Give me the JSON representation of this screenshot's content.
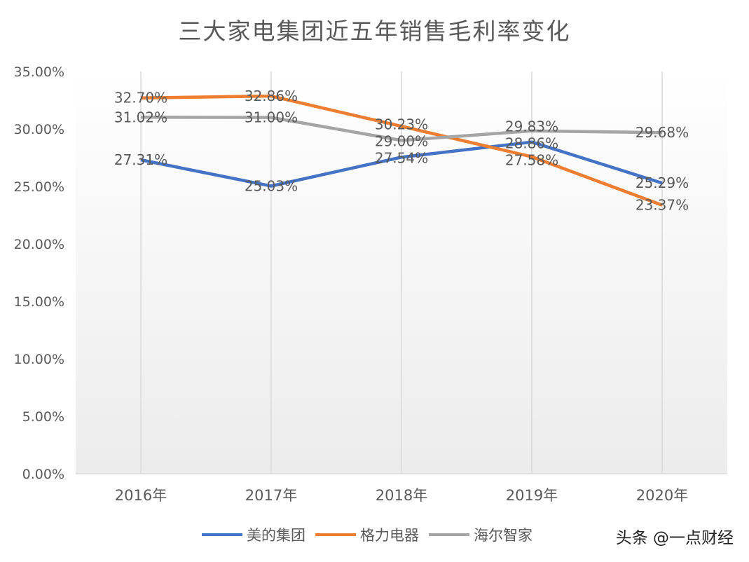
{
  "chart_data": {
    "type": "line",
    "title": "三大家电集团近五年销售毛利率变化",
    "categories": [
      "2016年",
      "2017年",
      "2018年",
      "2019年",
      "2020年"
    ],
    "ylim": [
      0,
      35
    ],
    "yticks": [
      "0.00%",
      "5.00%",
      "10.00%",
      "15.00%",
      "20.00%",
      "25.00%",
      "30.00%",
      "35.00%"
    ],
    "grid": "vertical",
    "legend_position": "bottom",
    "series": [
      {
        "name": "美的集团",
        "color": "#4472C4",
        "values": [
          27.31,
          25.03,
          27.54,
          28.86,
          25.29
        ],
        "labels": [
          "27.31%",
          "25.03%",
          "27.54%",
          "28.86%",
          "25.29%"
        ]
      },
      {
        "name": "格力电器",
        "color": "#ED7D31",
        "values": [
          32.7,
          32.86,
          30.23,
          27.58,
          23.37
        ],
        "labels": [
          "32.70%",
          "32.86%",
          "30.23%",
          "27.58%",
          "23.37%"
        ]
      },
      {
        "name": "海尔智家",
        "color": "#A5A5A5",
        "values": [
          31.02,
          31.0,
          29.0,
          29.83,
          29.68
        ],
        "labels": [
          "31.02%",
          "31.00%",
          "29.00%",
          "29.83%",
          "29.68%"
        ]
      }
    ]
  },
  "watermark": "头条 @一点财经"
}
